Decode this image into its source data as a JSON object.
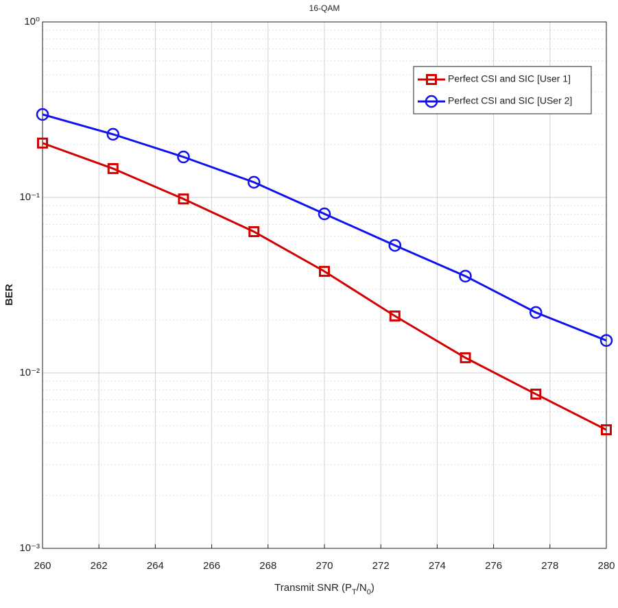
{
  "chart_data": {
    "type": "line",
    "title": "16-QAM",
    "xlabel_parts": [
      "Transmit SNR (P",
      "T",
      "/N",
      "0",
      ")"
    ],
    "ylabel": "BER",
    "x": [
      260,
      262.5,
      265,
      267.5,
      270,
      272.5,
      275,
      277.5,
      280
    ],
    "series": [
      {
        "name": "Perfect CSI and SIC [User 1]",
        "color": "#d40000",
        "marker": "square",
        "values": [
          0.204,
          0.146,
          0.098,
          0.0638,
          0.0379,
          0.0211,
          0.0122,
          0.00757,
          0.00474
        ]
      },
      {
        "name": "Perfect CSI and SIC [USer 2]",
        "color": "#1010f0",
        "marker": "circle",
        "values": [
          0.297,
          0.229,
          0.17,
          0.122,
          0.0806,
          0.0533,
          0.0356,
          0.0221,
          0.0153
        ]
      }
    ],
    "xlim": [
      260,
      280
    ],
    "xticks": [
      260,
      262,
      264,
      266,
      268,
      270,
      272,
      274,
      276,
      278,
      280
    ],
    "ylim": [
      0.001,
      1
    ],
    "ylog": true,
    "yticks": [
      {
        "value": 0.001,
        "label": "10⁻³"
      },
      {
        "value": 0.01,
        "label": "10⁻²"
      },
      {
        "value": 0.1,
        "label": "10⁻¹"
      },
      {
        "value": 1,
        "label": "10⁰"
      }
    ],
    "grid": true,
    "minor_grid": true,
    "legend": "upper right"
  }
}
